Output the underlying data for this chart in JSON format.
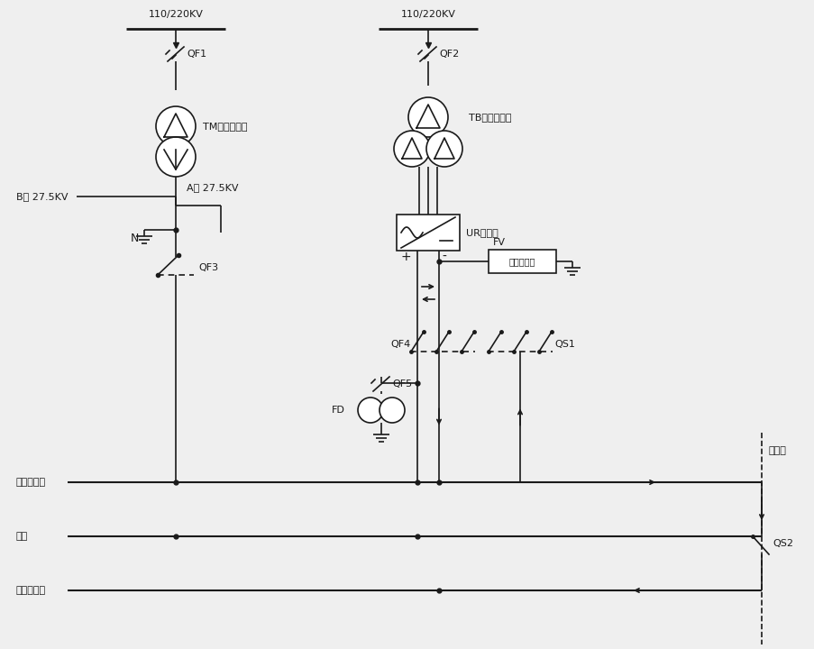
{
  "bg_color": "#efefef",
  "lc": "#1a1a1a",
  "lw": 1.2,
  "labels": {
    "kv_left": "110/220KV",
    "kv_right": "110/220KV",
    "QF1": "QF1",
    "QF2": "QF2",
    "TM": "TM牵引变压器",
    "TB": "TB整流变压器",
    "UR": "UR整流器",
    "FV": "FV",
    "vc": "出压限制器",
    "B_bus": "B管 27.5KV",
    "A_bus": "A管 27.5KV",
    "N": "N",
    "QF3": "QF3",
    "QF4": "QF4",
    "QF5": "QF5",
    "QS1": "QS1",
    "QS2": "QS2",
    "FD": "FD",
    "cat_up": "牵引网上行",
    "rail": "钐轨",
    "cat_down": "牵引网下行",
    "substation": "分区所",
    "plus": "+",
    "minus": "-"
  }
}
